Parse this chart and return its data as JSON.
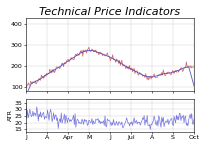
{
  "title": "Technical Price Indicators",
  "xlabel_ticks": [
    "J",
    "A",
    "Apr",
    "M",
    "J",
    "Jul",
    "A",
    "S",
    "Oct"
  ],
  "upper_ylim": [
    80,
    430
  ],
  "upper_yticks": [
    100,
    200,
    300,
    400
  ],
  "lower_ylim": [
    13,
    38
  ],
  "lower_yticks": [
    15,
    20,
    25,
    30,
    35
  ],
  "lower_ylabel": "ATR",
  "price_color": "#cc4444",
  "ma_color": "#4444bb",
  "atr_color": "#6666dd",
  "background_color": "#ffffff",
  "grid_color": "#cccccc",
  "title_fontsize": 8,
  "tick_fontsize": 4.5
}
